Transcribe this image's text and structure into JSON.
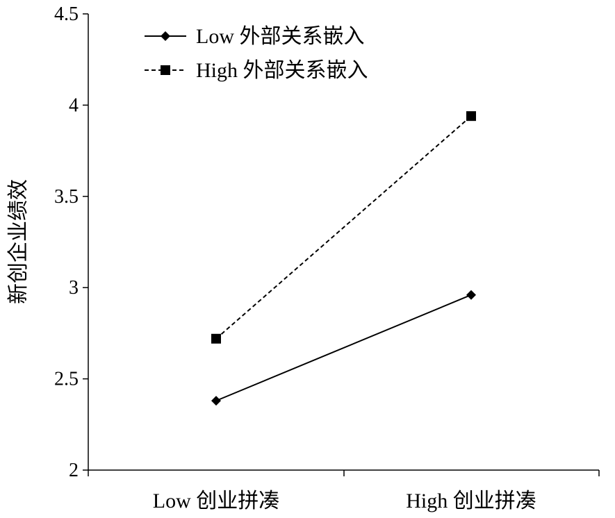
{
  "chart_data": {
    "type": "line",
    "title": "",
    "xlabel": "",
    "ylabel": "新创企业绩效",
    "categories": [
      "Low 创业拼凑",
      "High 创业拼凑"
    ],
    "ylim": [
      2,
      4.5
    ],
    "yticks": [
      "2",
      "2.5",
      "3",
      "3.5",
      "4",
      "4.5"
    ],
    "ytick_values": [
      2,
      2.5,
      3,
      3.5,
      4,
      4.5
    ],
    "grid": false,
    "legend_position": "top-left",
    "series": [
      {
        "name": "Low 外部关系嵌入",
        "values": [
          2.38,
          2.96
        ],
        "line_style": "solid",
        "marker": "diamond",
        "color": "#000000"
      },
      {
        "name": "High 外部关系嵌入",
        "values": [
          2.72,
          3.94
        ],
        "line_style": "dashed",
        "marker": "square",
        "color": "#000000"
      }
    ]
  }
}
